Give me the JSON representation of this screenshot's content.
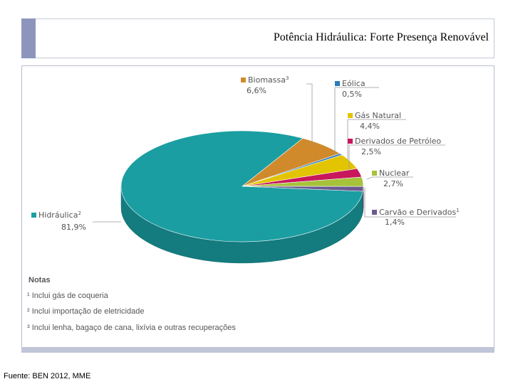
{
  "slide": {
    "title": "Potência Hidráulica: Forte Presença Renovável",
    "source": "Fuente: BEN 2012, MME"
  },
  "chart_data": {
    "type": "pie",
    "title": "",
    "slices": [
      {
        "label": "Hidráulica",
        "sup": "2",
        "value": 81.9,
        "display": "81,9%",
        "color": "#1a9ea2"
      },
      {
        "label": "Biomassa",
        "sup": "3",
        "value": 6.6,
        "display": "6,6%",
        "color": "#d08a2c"
      },
      {
        "label": "Eólica",
        "sup": "",
        "value": 0.5,
        "display": "0,5%",
        "color": "#2a7bbf"
      },
      {
        "label": "Gás Natural",
        "sup": "",
        "value": 4.4,
        "display": "4,4%",
        "color": "#e3c400"
      },
      {
        "label": "Derivados de Petróleo",
        "sup": "",
        "value": 2.5,
        "display": "2,5%",
        "color": "#c8175d"
      },
      {
        "label": "Nuclear",
        "sup": "",
        "value": 2.7,
        "display": "2,7%",
        "color": "#a5c23a"
      },
      {
        "label": "Carvão e Derivados",
        "sup": "1",
        "value": 1.4,
        "display": "1,4%",
        "color": "#6b5a91"
      }
    ],
    "notes": {
      "title": "Notas",
      "items": [
        "¹ Inclui gás de coqueria",
        "² Inclui importação de eletricidade",
        "³ Inclui lenha, bagaço de cana, lixívia e outras recuperações"
      ]
    }
  }
}
